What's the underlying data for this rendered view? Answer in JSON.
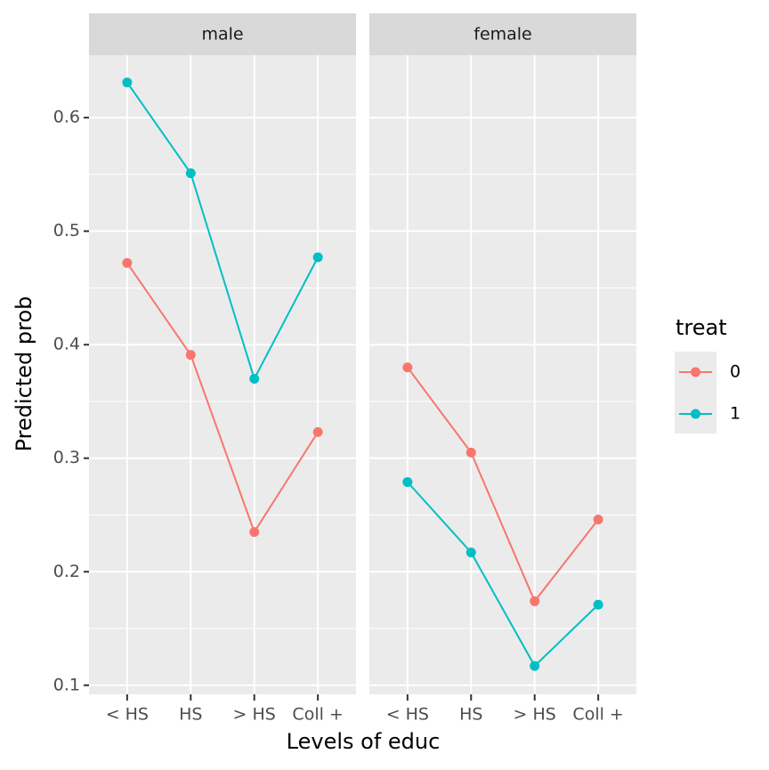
{
  "chart_data": [
    {
      "type": "line",
      "title": "male",
      "categories": [
        "< HS",
        "HS",
        "> HS",
        "Coll +"
      ],
      "series": [
        {
          "name": "0",
          "color": "#F8766D",
          "values": [
            0.472,
            0.391,
            0.235,
            0.323
          ]
        },
        {
          "name": "1",
          "color": "#00BFC4",
          "values": [
            0.631,
            0.551,
            0.37,
            0.477
          ]
        }
      ],
      "ylim": [
        0.092,
        0.655
      ],
      "yticks": [
        0.1,
        0.2,
        0.3,
        0.4,
        0.5,
        0.6
      ],
      "grid": true
    },
    {
      "type": "line",
      "title": "female",
      "categories": [
        "< HS",
        "HS",
        "> HS",
        "Coll +"
      ],
      "series": [
        {
          "name": "0",
          "color": "#F8766D",
          "values": [
            0.38,
            0.305,
            0.174,
            0.246
          ]
        },
        {
          "name": "1",
          "color": "#00BFC4",
          "values": [
            0.279,
            0.217,
            0.117,
            0.171
          ]
        }
      ],
      "ylim": [
        0.092,
        0.655
      ],
      "yticks": [
        0.1,
        0.2,
        0.3,
        0.4,
        0.5,
        0.6
      ],
      "grid": true
    }
  ],
  "x_label": "Levels of educ",
  "y_label": "Predicted prob",
  "legend_title": "treat"
}
